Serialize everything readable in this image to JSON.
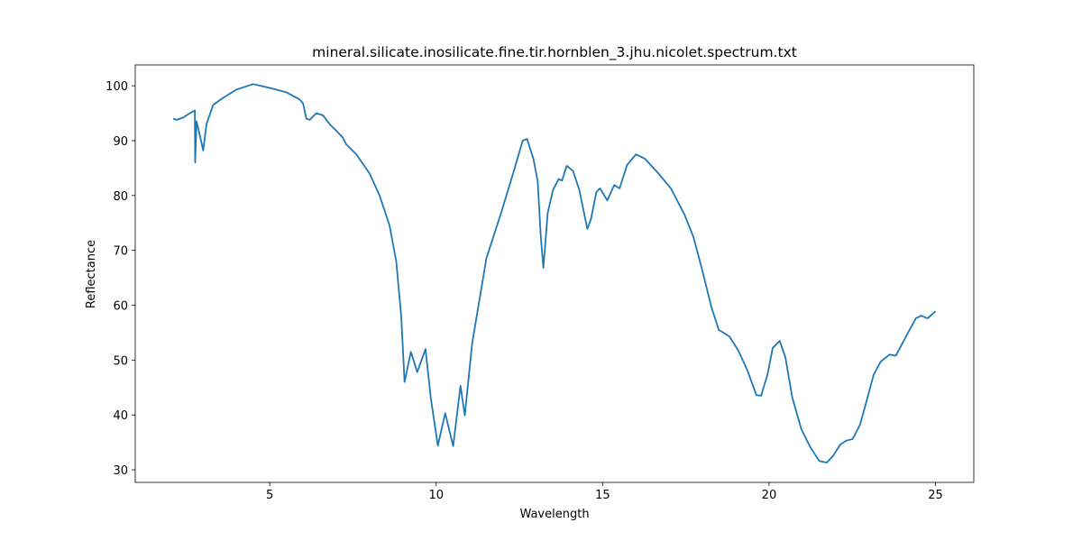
{
  "chart_data": {
    "type": "line",
    "title": "mineral.silicate.inosilicate.fine.tir.hornblen_3.jhu.nicolet.spectrum.txt",
    "x_label": "Wavelength",
    "y_label": "Reflectance",
    "xlim": [
      0.96,
      26.15
    ],
    "ylim": [
      27.7,
      103.8
    ],
    "xticks": [
      5,
      10,
      15,
      20,
      25
    ],
    "yticks": [
      30,
      40,
      50,
      60,
      70,
      80,
      90,
      100
    ],
    "grid": false,
    "series": [
      {
        "name": "Reflectance",
        "color": "#1f77b4",
        "x": [
          2.1,
          2.2,
          2.4,
          2.6,
          2.75,
          2.76,
          2.8,
          2.9,
          3.0,
          3.1,
          3.3,
          3.6,
          4.0,
          4.5,
          5.0,
          5.5,
          5.9,
          6.0,
          6.1,
          6.2,
          6.4,
          6.6,
          6.8,
          7.0,
          7.2,
          7.3,
          7.6,
          8.0,
          8.3,
          8.6,
          8.8,
          8.95,
          9.05,
          9.24,
          9.43,
          9.68,
          9.84,
          10.05,
          10.27,
          10.51,
          10.73,
          10.86,
          11.08,
          11.51,
          11.95,
          12.32,
          12.6,
          12.73,
          12.92,
          13.05,
          13.14,
          13.22,
          13.35,
          13.51,
          13.68,
          13.78,
          13.92,
          14.11,
          14.3,
          14.54,
          14.65,
          14.81,
          14.92,
          15.14,
          15.35,
          15.51,
          15.73,
          16.0,
          16.27,
          16.65,
          17.05,
          17.46,
          17.73,
          18.0,
          18.27,
          18.49,
          18.81,
          19.08,
          19.35,
          19.62,
          19.76,
          19.95,
          20.11,
          20.32,
          20.49,
          20.7,
          20.97,
          21.24,
          21.51,
          21.73,
          21.92,
          22.14,
          22.32,
          22.51,
          22.73,
          22.92,
          23.14,
          23.35,
          23.62,
          23.81,
          24.0,
          24.22,
          24.41,
          24.57,
          24.76,
          25.0
        ],
        "values": [
          94,
          93.8,
          94.2,
          95,
          95.5,
          86,
          93.5,
          91,
          88.2,
          93,
          96.5,
          97.8,
          99.3,
          100.3,
          99.6,
          98.8,
          97.5,
          96.8,
          94,
          93.8,
          95,
          94.6,
          93,
          91.8,
          90.5,
          89.3,
          87.5,
          84,
          80,
          74.5,
          68,
          58,
          46,
          51.5,
          47.8,
          52,
          43,
          34.4,
          40.3,
          34.3,
          45.3,
          39.9,
          53,
          68.6,
          76.8,
          84.2,
          90,
          90.3,
          86.7,
          82.6,
          72.7,
          66.8,
          76.8,
          81,
          83,
          82.7,
          85.4,
          84.5,
          81,
          73.9,
          75.7,
          80.6,
          81.3,
          79.1,
          81.9,
          81.3,
          85.5,
          87.5,
          86.7,
          84.2,
          81.3,
          76.5,
          72.4,
          66.2,
          59.6,
          55.5,
          54.3,
          51.7,
          48.1,
          43.6,
          43.5,
          47.3,
          52.2,
          53.5,
          50.5,
          43.1,
          37.4,
          34.1,
          31.6,
          31.3,
          32.5,
          34.6,
          35.3,
          35.6,
          38.2,
          42.3,
          47.3,
          49.7,
          51,
          50.8,
          53,
          55.5,
          57.6,
          58.1,
          57.6,
          58.9
        ]
      }
    ]
  }
}
